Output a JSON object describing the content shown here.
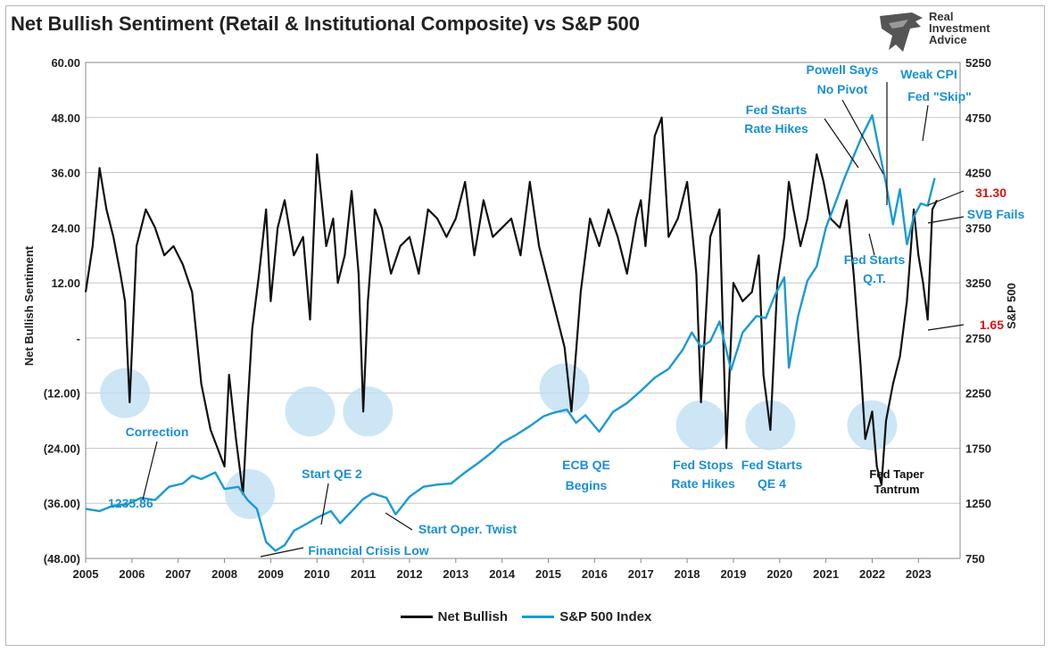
{
  "title": "Net Bullish Sentiment (Retail & Institutional Composite) vs S&P 500",
  "logo": {
    "line1": "Real",
    "line2": "Investment",
    "line3": "Advice",
    "icon": "eagle-icon"
  },
  "legend": [
    {
      "label": "Net Bullish",
      "color": "#111111"
    },
    {
      "label": "S&P 500 Index",
      "color": "#1a9ad6"
    }
  ],
  "chart_data": {
    "type": "line",
    "ylabel": "Net Bullish Sentiment",
    "y2label": "S&P 500",
    "xlim": [
      2005,
      2023.9
    ],
    "ylim": [
      -48,
      60
    ],
    "y2lim": [
      750,
      5250
    ],
    "x_ticks": [
      "2005",
      "2006",
      "2007",
      "2008",
      "2009",
      "2010",
      "2011",
      "2012",
      "2013",
      "2014",
      "2015",
      "2016",
      "2017",
      "2018",
      "2019",
      "2020",
      "2021",
      "2022",
      "2023"
    ],
    "y_ticks": [
      "60.00",
      "48.00",
      "36.00",
      "24.00",
      "12.00",
      "-",
      "(12.00)",
      "(24.00)",
      "(36.00)",
      "(48.00)"
    ],
    "y2_ticks": [
      "5250",
      "4750",
      "4250",
      "3750",
      "3250",
      "2750",
      "2250",
      "1750",
      "1250",
      "750"
    ],
    "grid": true,
    "legend_position": "bottom",
    "series": [
      {
        "name": "Net Bullish",
        "axis": "left",
        "color": "#111111",
        "x": [
          2005.0,
          2005.15,
          2005.3,
          2005.45,
          2005.6,
          2005.75,
          2005.85,
          2005.95,
          2006.1,
          2006.3,
          2006.5,
          2006.7,
          2006.9,
          2007.1,
          2007.3,
          2007.5,
          2007.7,
          2007.85,
          2008.0,
          2008.1,
          2008.25,
          2008.4,
          2008.5,
          2008.6,
          2008.75,
          2008.9,
          2009.0,
          2009.15,
          2009.3,
          2009.5,
          2009.7,
          2009.85,
          2010.0,
          2010.2,
          2010.35,
          2010.45,
          2010.6,
          2010.75,
          2010.9,
          2011.0,
          2011.1,
          2011.25,
          2011.4,
          2011.6,
          2011.8,
          2012.0,
          2012.2,
          2012.4,
          2012.6,
          2012.8,
          2013.0,
          2013.2,
          2013.4,
          2013.6,
          2013.8,
          2014.0,
          2014.2,
          2014.4,
          2014.6,
          2014.8,
          2015.0,
          2015.2,
          2015.35,
          2015.5,
          2015.7,
          2015.9,
          2016.1,
          2016.3,
          2016.5,
          2016.7,
          2016.9,
          2017.0,
          2017.1,
          2017.3,
          2017.45,
          2017.6,
          2017.8,
          2018.0,
          2018.1,
          2018.2,
          2018.3,
          2018.5,
          2018.7,
          2018.85,
          2019.0,
          2019.2,
          2019.4,
          2019.55,
          2019.65,
          2019.8,
          2019.95,
          2020.1,
          2020.2,
          2020.3,
          2020.45,
          2020.6,
          2020.8,
          2020.95,
          2021.1,
          2021.3,
          2021.45,
          2021.6,
          2021.75,
          2021.85,
          2022.0,
          2022.1,
          2022.2,
          2022.3,
          2022.45,
          2022.6,
          2022.75,
          2022.9,
          2023.0,
          2023.1,
          2023.2,
          2023.3,
          2023.4
        ],
        "y": [
          10,
          20,
          37,
          28,
          22,
          14,
          8,
          -14,
          20,
          28,
          24,
          18,
          20,
          16,
          10,
          -10,
          -20,
          -24,
          -28,
          -8,
          -22,
          -34,
          -15,
          2,
          14,
          28,
          8,
          24,
          30,
          18,
          22,
          4,
          40,
          20,
          26,
          12,
          18,
          32,
          14,
          -16,
          8,
          28,
          24,
          14,
          20,
          22,
          14,
          28,
          26,
          22,
          26,
          34,
          18,
          30,
          22,
          24,
          26,
          18,
          34,
          20,
          12,
          4,
          -2,
          -16,
          10,
          26,
          20,
          28,
          22,
          14,
          26,
          30,
          20,
          44,
          48,
          22,
          26,
          34,
          24,
          14,
          -14,
          22,
          28,
          -24,
          12,
          8,
          10,
          18,
          -8,
          -20,
          12,
          22,
          34,
          28,
          20,
          26,
          40,
          34,
          26,
          24,
          30,
          14,
          -6,
          -22,
          -16,
          -28,
          -32,
          -18,
          -10,
          -4,
          8,
          28,
          18,
          12,
          4,
          28,
          30
        ]
      },
      {
        "name": "S&P 500 Index",
        "axis": "right",
        "color": "#1a9ad6",
        "x": [
          2005.0,
          2005.3,
          2005.6,
          2005.9,
          2006.2,
          2006.5,
          2006.8,
          2007.1,
          2007.3,
          2007.5,
          2007.8,
          2008.0,
          2008.3,
          2008.5,
          2008.7,
          2008.9,
          2009.1,
          2009.3,
          2009.5,
          2009.8,
          2010.0,
          2010.3,
          2010.5,
          2010.8,
          2011.0,
          2011.2,
          2011.5,
          2011.7,
          2012.0,
          2012.3,
          2012.6,
          2012.9,
          2013.2,
          2013.5,
          2013.8,
          2014.0,
          2014.3,
          2014.6,
          2014.9,
          2015.1,
          2015.4,
          2015.6,
          2015.8,
          2016.1,
          2016.4,
          2016.7,
          2017.0,
          2017.3,
          2017.6,
          2017.9,
          2018.1,
          2018.3,
          2018.5,
          2018.7,
          2018.95,
          2019.2,
          2019.5,
          2019.7,
          2019.9,
          2020.1,
          2020.2,
          2020.4,
          2020.6,
          2020.8,
          2021.0,
          2021.2,
          2021.4,
          2021.6,
          2021.8,
          2022.0,
          2022.15,
          2022.3,
          2022.45,
          2022.6,
          2022.75,
          2022.9,
          2023.05,
          2023.2,
          2023.35
        ],
        "y": [
          1200,
          1180,
          1230,
          1240,
          1300,
          1280,
          1400,
          1430,
          1500,
          1470,
          1530,
          1380,
          1400,
          1280,
          1200,
          900,
          820,
          870,
          1000,
          1070,
          1120,
          1180,
          1070,
          1200,
          1290,
          1340,
          1300,
          1150,
          1310,
          1400,
          1420,
          1430,
          1530,
          1620,
          1720,
          1800,
          1870,
          1950,
          2040,
          2070,
          2100,
          1980,
          2050,
          1900,
          2080,
          2160,
          2270,
          2390,
          2470,
          2640,
          2800,
          2670,
          2720,
          2900,
          2460,
          2800,
          2950,
          2930,
          3140,
          3300,
          2480,
          2950,
          3270,
          3400,
          3750,
          3970,
          4200,
          4400,
          4600,
          4770,
          4450,
          4150,
          3780,
          4100,
          3600,
          3850,
          3970,
          3950,
          4200
        ]
      }
    ],
    "annotations": [
      {
        "text": "Correction",
        "color": "blue"
      },
      {
        "text": "1235.86",
        "color": "blue"
      },
      {
        "text": "Start QE 2",
        "color": "blue"
      },
      {
        "text": "Financial Crisis Low",
        "color": "blue"
      },
      {
        "text": "Start Oper. Twist",
        "color": "blue"
      },
      {
        "text": "ECB QE",
        "color": "blue"
      },
      {
        "text": "Begins",
        "color": "blue"
      },
      {
        "text": "Fed Stops",
        "color": "blue"
      },
      {
        "text": "Rate Hikes",
        "color": "blue"
      },
      {
        "text": "Fed Starts",
        "color": "blue"
      },
      {
        "text": "QE 4",
        "color": "blue"
      },
      {
        "text": "Fed Taper",
        "color": "black"
      },
      {
        "text": "Tantrum",
        "color": "black"
      },
      {
        "text": "Fed Starts",
        "color": "blue"
      },
      {
        "text": "Rate Hikes",
        "color": "blue"
      },
      {
        "text": "Powell Says",
        "color": "blue"
      },
      {
        "text": "No Pivot",
        "color": "blue"
      },
      {
        "text": "Weak CPI",
        "color": "blue"
      },
      {
        "text": "Fed \"Skip\"",
        "color": "blue"
      },
      {
        "text": "Fed Starts",
        "color": "blue"
      },
      {
        "text": "Q.T.",
        "color": "blue"
      },
      {
        "text": "SVB Fails",
        "color": "blue"
      },
      {
        "text": "31.30",
        "color": "red"
      },
      {
        "text": "1.65",
        "color": "red"
      }
    ],
    "circled_lows": [
      2005.85,
      2008.55,
      2009.85,
      2011.1,
      2015.35,
      2018.3,
      2019.8,
      2022.0
    ]
  }
}
